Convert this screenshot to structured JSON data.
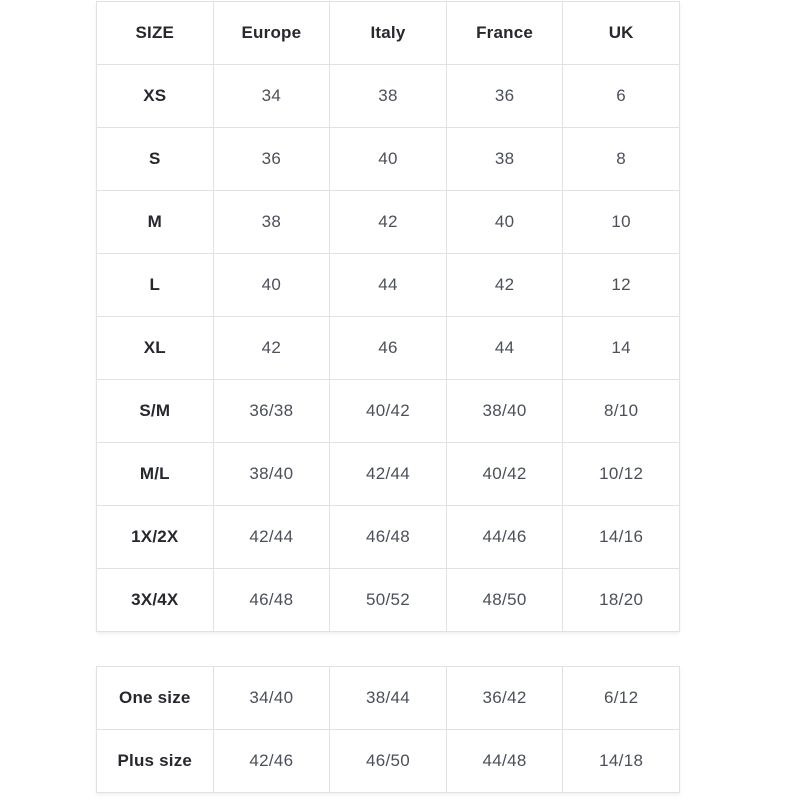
{
  "size_table": {
    "headers": [
      "SIZE",
      "Europe",
      "Italy",
      "France",
      "UK"
    ],
    "rows": [
      [
        "XS",
        "34",
        "38",
        "36",
        "6"
      ],
      [
        "S",
        "36",
        "40",
        "38",
        "8"
      ],
      [
        "M",
        "38",
        "42",
        "40",
        "10"
      ],
      [
        "L",
        "40",
        "44",
        "42",
        "12"
      ],
      [
        "XL",
        "42",
        "46",
        "44",
        "14"
      ],
      [
        "S/M",
        "36/38",
        "40/42",
        "38/40",
        "8/10"
      ],
      [
        "M/L",
        "38/40",
        "42/44",
        "40/42",
        "10/12"
      ],
      [
        "1X/2X",
        "42/44",
        "46/48",
        "44/46",
        "14/16"
      ],
      [
        "3X/4X",
        "46/48",
        "50/52",
        "48/50",
        "18/20"
      ]
    ]
  },
  "special_table": {
    "rows": [
      [
        "One size",
        "34/40",
        "38/44",
        "36/42",
        "6/12"
      ],
      [
        "Plus size",
        "42/46",
        "46/50",
        "44/48",
        "14/18"
      ]
    ]
  },
  "colors": {
    "background": "#ffffff",
    "border": "#e2e2e2",
    "label_text": "#26282e",
    "value_text": "#4b505a"
  }
}
